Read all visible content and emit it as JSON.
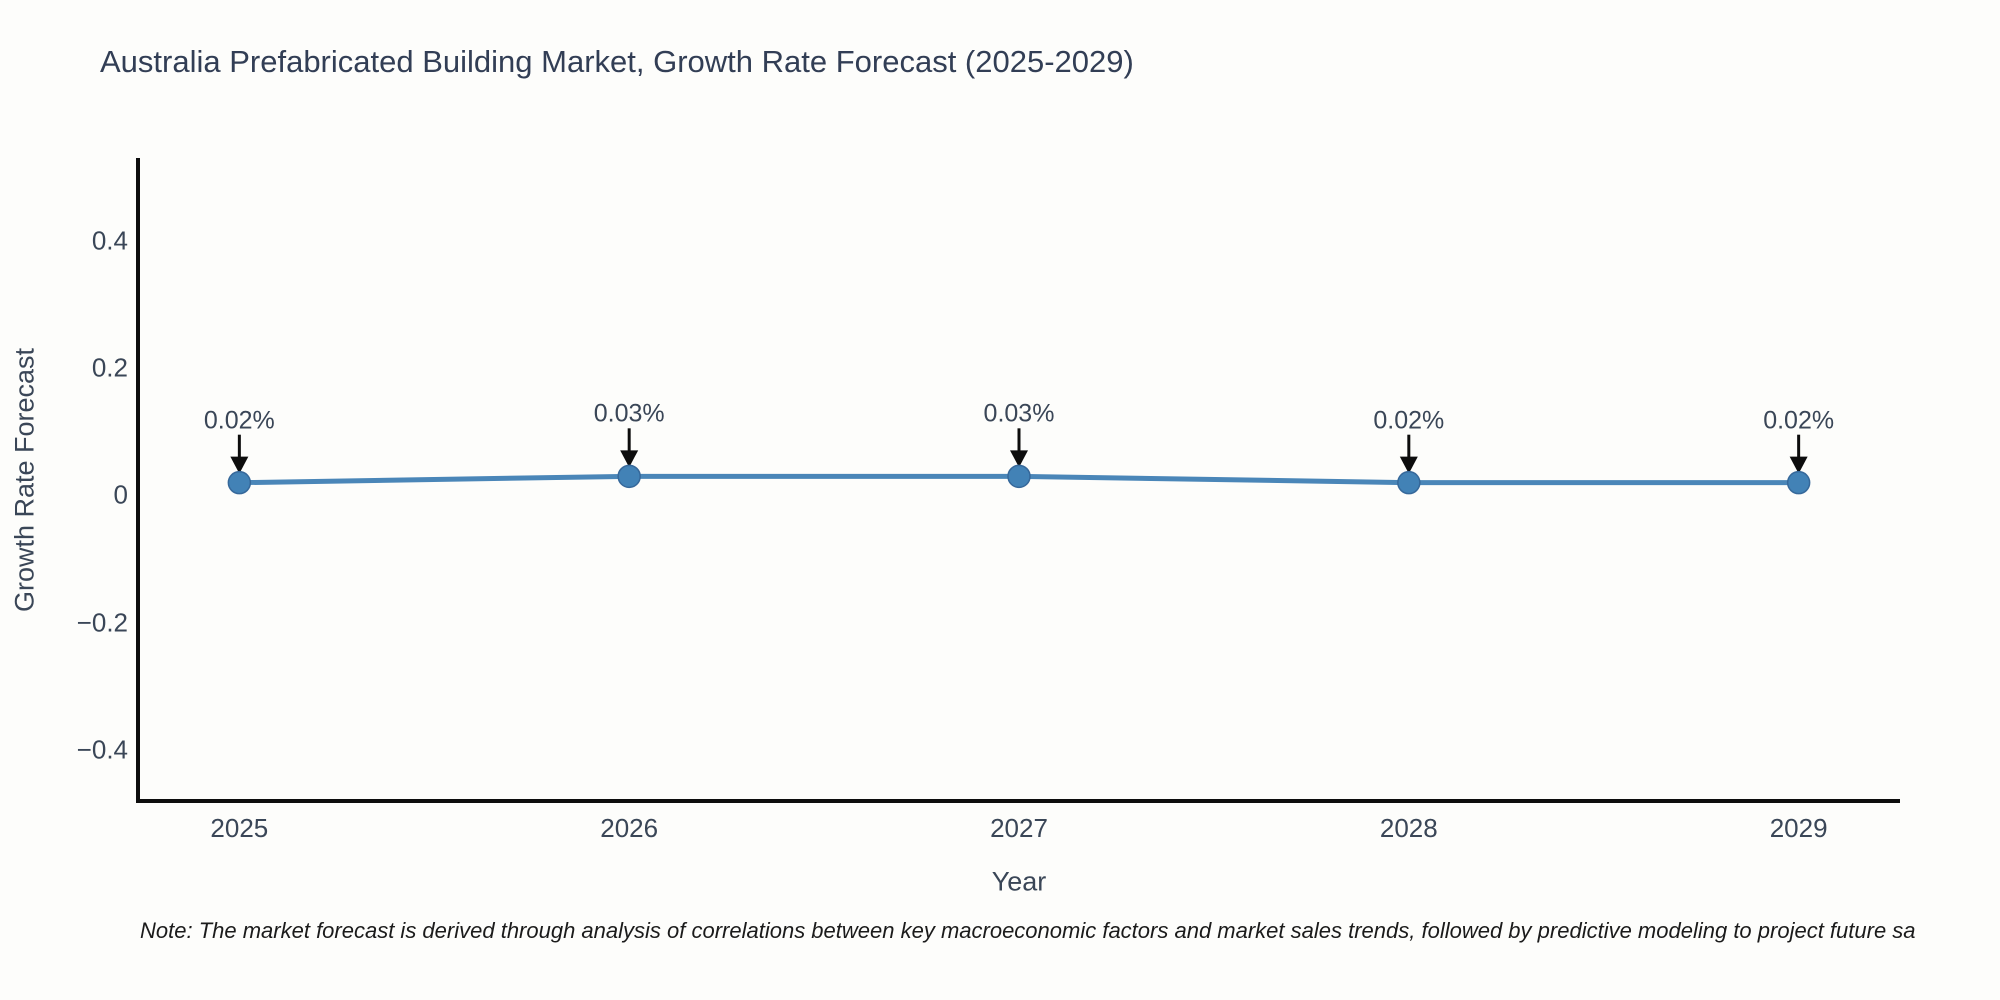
{
  "title": "Australia Prefabricated Building Market, Growth Rate Forecast (2025-2029)",
  "note": "Note: The market forecast is derived through analysis of correlations between key macroeconomic factors and market sales trends, followed by predictive modeling to project future sa",
  "colors": {
    "background": "#fdfdfb",
    "line": "#4a86b8",
    "marker_fill": "#4282b6",
    "marker_edge": "#36689a",
    "axis_spine": "#0d0d0d",
    "arrow": "#0d0d0d",
    "label_text": "#3a4657",
    "title_text": "#323e55",
    "note_text": "#1b1b1b"
  },
  "chart_data": {
    "type": "line",
    "title": "Australia Prefabricated Building Market, Growth Rate Forecast (2025-2029)",
    "xlabel": "Year",
    "ylabel": "Growth Rate Forecast",
    "x": [
      2025,
      2026,
      2027,
      2028,
      2029
    ],
    "values": [
      0.02,
      0.03,
      0.03,
      0.02,
      0.02
    ],
    "point_labels": [
      "0.02%",
      "0.03%",
      "0.03%",
      "0.02%",
      "0.02%"
    ],
    "xticks": [
      2025,
      2026,
      2027,
      2028,
      2029
    ],
    "xtick_labels": [
      "2025",
      "2026",
      "2027",
      "2028",
      "2029"
    ],
    "yticks": [
      -0.4,
      -0.2,
      0,
      0.2,
      0.4
    ],
    "ytick_labels": [
      "−0.4",
      "−0.2",
      "0",
      "0.2",
      "0.4"
    ],
    "xlim": [
      2024.74,
      2029.26
    ],
    "ylim": [
      -0.48,
      0.53
    ],
    "grid": false,
    "legend": false,
    "marker": "circle",
    "annotations_arrow": true
  }
}
